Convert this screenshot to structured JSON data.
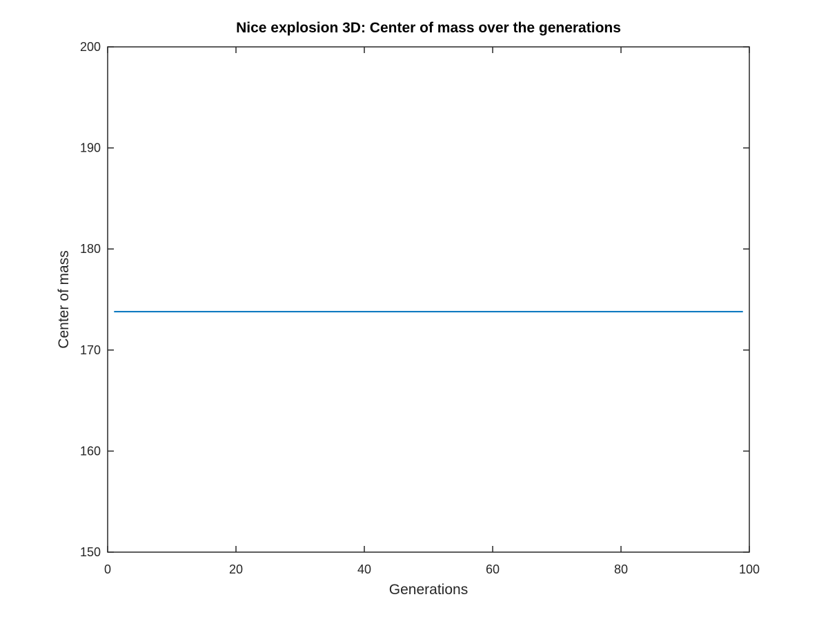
{
  "chart_data": {
    "type": "line",
    "title": "Nice explosion 3D: Center of mass over the generations",
    "xlabel": "Generations",
    "ylabel": "Center of mass",
    "xlim": [
      0,
      100
    ],
    "ylim": [
      150,
      200
    ],
    "xticks": [
      0,
      20,
      40,
      60,
      80,
      100
    ],
    "yticks": [
      150,
      160,
      170,
      180,
      190,
      200
    ],
    "xtick_labels": [
      "0",
      "20",
      "40",
      "60",
      "80",
      "100"
    ],
    "ytick_labels": [
      "150",
      "160",
      "170",
      "180",
      "190",
      "200"
    ],
    "grid": false,
    "series": [
      {
        "color": "#0072BD",
        "x": [
          1,
          99
        ],
        "y": [
          173.8,
          173.8
        ]
      }
    ]
  }
}
